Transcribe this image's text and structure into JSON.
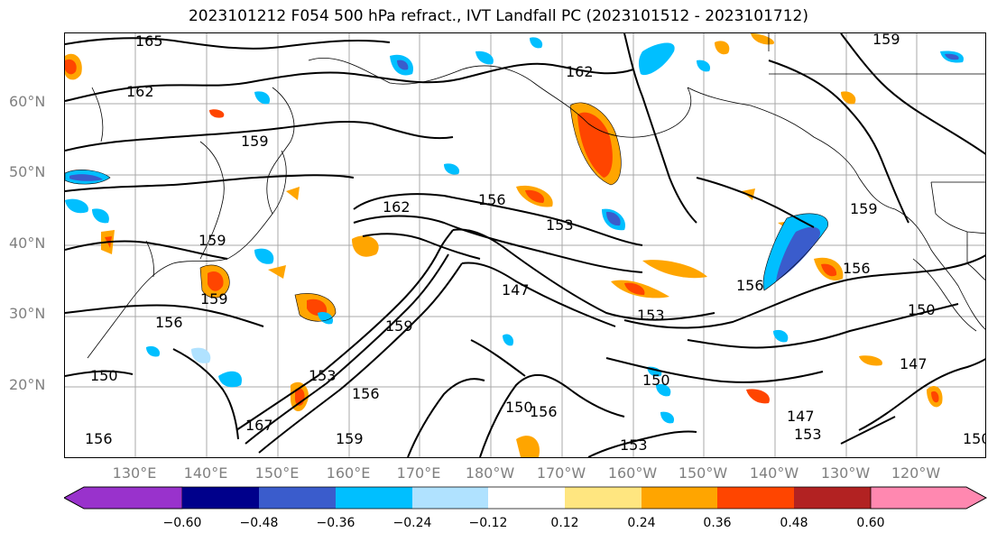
{
  "title": "2023101212 F054 500 hPa refract., IVT Landfall PC (2023101512 - 2023101712)",
  "lat_labels": [
    "60°N",
    "50°N",
    "40°N",
    "30°N",
    "20°N"
  ],
  "lon_labels": [
    "130°E",
    "140°E",
    "150°E",
    "160°E",
    "170°E",
    "180°W",
    "170°W",
    "160°W",
    "150°W",
    "140°W",
    "130°W",
    "120°W"
  ],
  "contour_labels": [
    "165",
    "162",
    "162",
    "159",
    "159",
    "162",
    "156",
    "153",
    "147",
    "153",
    "156",
    "156",
    "159",
    "159",
    "156",
    "150",
    "150",
    "147",
    "150",
    "153",
    "156",
    "159",
    "147",
    "153",
    "159",
    "156",
    "153",
    "150",
    "167",
    "159",
    "150",
    "156"
  ],
  "colorbar": {
    "ticks": [
      "−0.60",
      "−0.48",
      "−0.36",
      "−0.24",
      "−0.12",
      "0.12",
      "0.24",
      "0.36",
      "0.48",
      "0.60"
    ],
    "colors": [
      "#9932cc",
      "#00008b",
      "#3a5ccc",
      "#00bfff",
      "#b0e2ff",
      "#ffffff",
      "#ffe680",
      "#ffa500",
      "#ff4500",
      "#b22222",
      "#ff88b0"
    ]
  }
}
